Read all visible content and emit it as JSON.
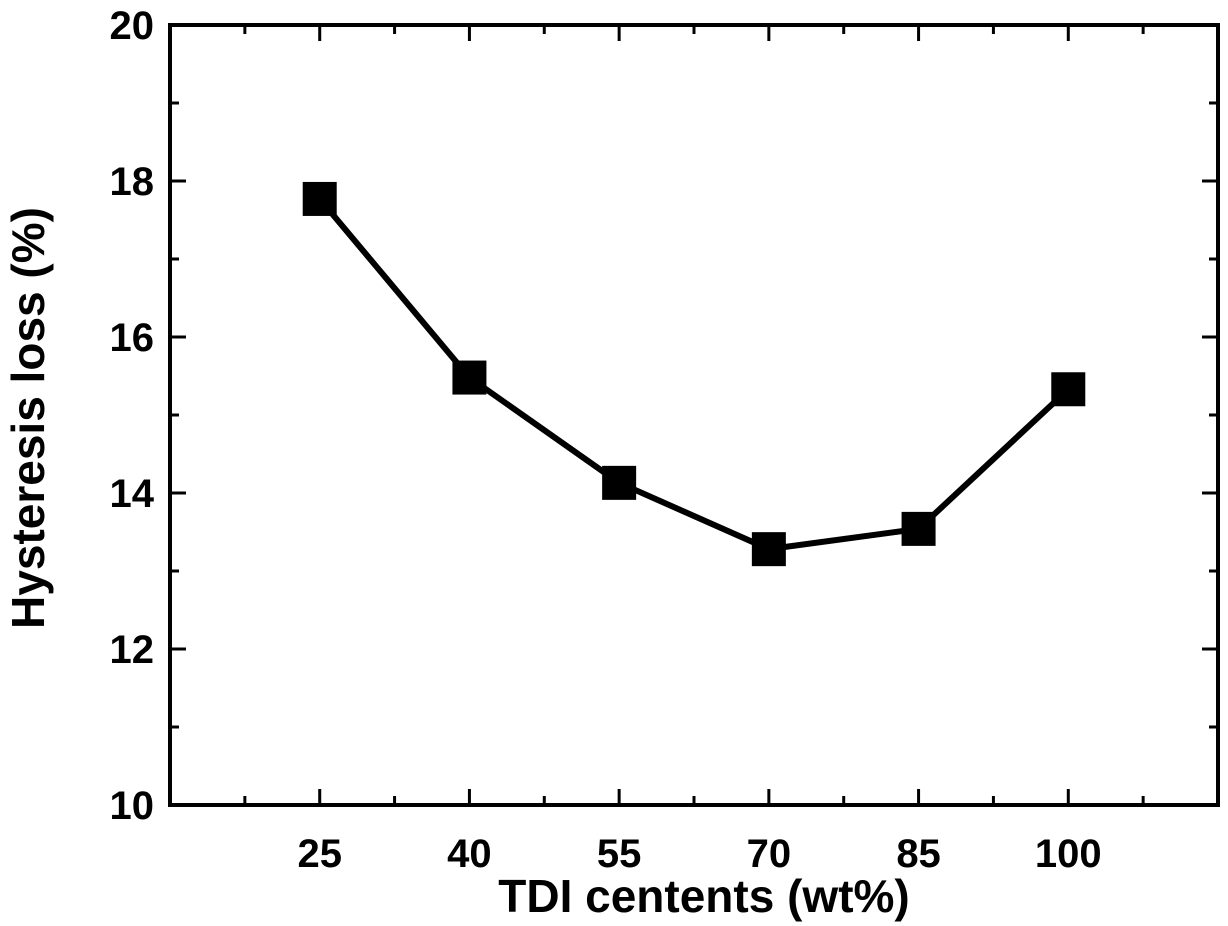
{
  "chart_data": {
    "type": "line",
    "title": "",
    "xlabel": "TDI centents (wt%)",
    "ylabel": "Hysteresis loss (%)",
    "x": [
      25,
      40,
      55,
      70,
      85,
      100
    ],
    "x_tick_labels": [
      "25",
      "40",
      "55",
      "70",
      "85",
      "100"
    ],
    "xlim": [
      10,
      115
    ],
    "ylim": [
      10,
      20
    ],
    "y_ticks": [
      10,
      12,
      14,
      16,
      18,
      20
    ],
    "y_tick_labels": [
      "10",
      "12",
      "14",
      "16",
      "18",
      "20"
    ],
    "series": [
      {
        "values": [
          17.77,
          15.48,
          14.13,
          13.28,
          13.54,
          15.33
        ],
        "color": "#000000",
        "marker": "square"
      }
    ],
    "grid": false,
    "legend": "none"
  }
}
